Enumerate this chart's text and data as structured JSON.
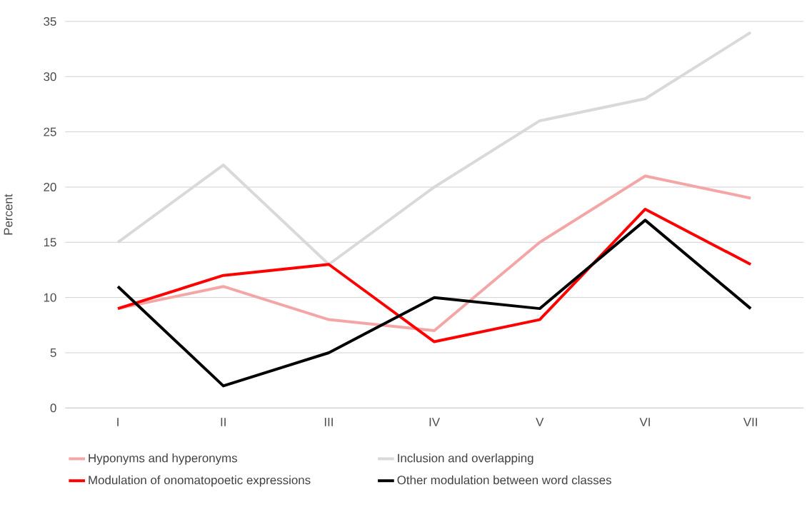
{
  "chart_data": {
    "type": "line",
    "ylabel": "Percent",
    "categories": [
      "I",
      "II",
      "III",
      "IV",
      "V",
      "VI",
      "VII"
    ],
    "series": [
      {
        "name": "Hyponyms and hyperonyms",
        "color": "#f4a6a6",
        "values": [
          9,
          11,
          8,
          7,
          15,
          21,
          19
        ]
      },
      {
        "name": "Inclusion and overlapping",
        "color": "#d9d9d9",
        "values": [
          15,
          22,
          13,
          20,
          26,
          28,
          34
        ]
      },
      {
        "name": "Modulation of onomatopoetic expressions",
        "color": "#ff0000",
        "values": [
          9,
          12,
          13,
          6,
          8,
          18,
          13
        ]
      },
      {
        "name": "Other modulation between word classes",
        "color": "#000000",
        "values": [
          11,
          2,
          5,
          10,
          9,
          17,
          9
        ]
      }
    ],
    "ylim": [
      0,
      35
    ],
    "yticks": [
      0,
      5,
      10,
      15,
      20,
      25,
      30,
      35
    ],
    "grid": "y",
    "legend": "bottom"
  }
}
